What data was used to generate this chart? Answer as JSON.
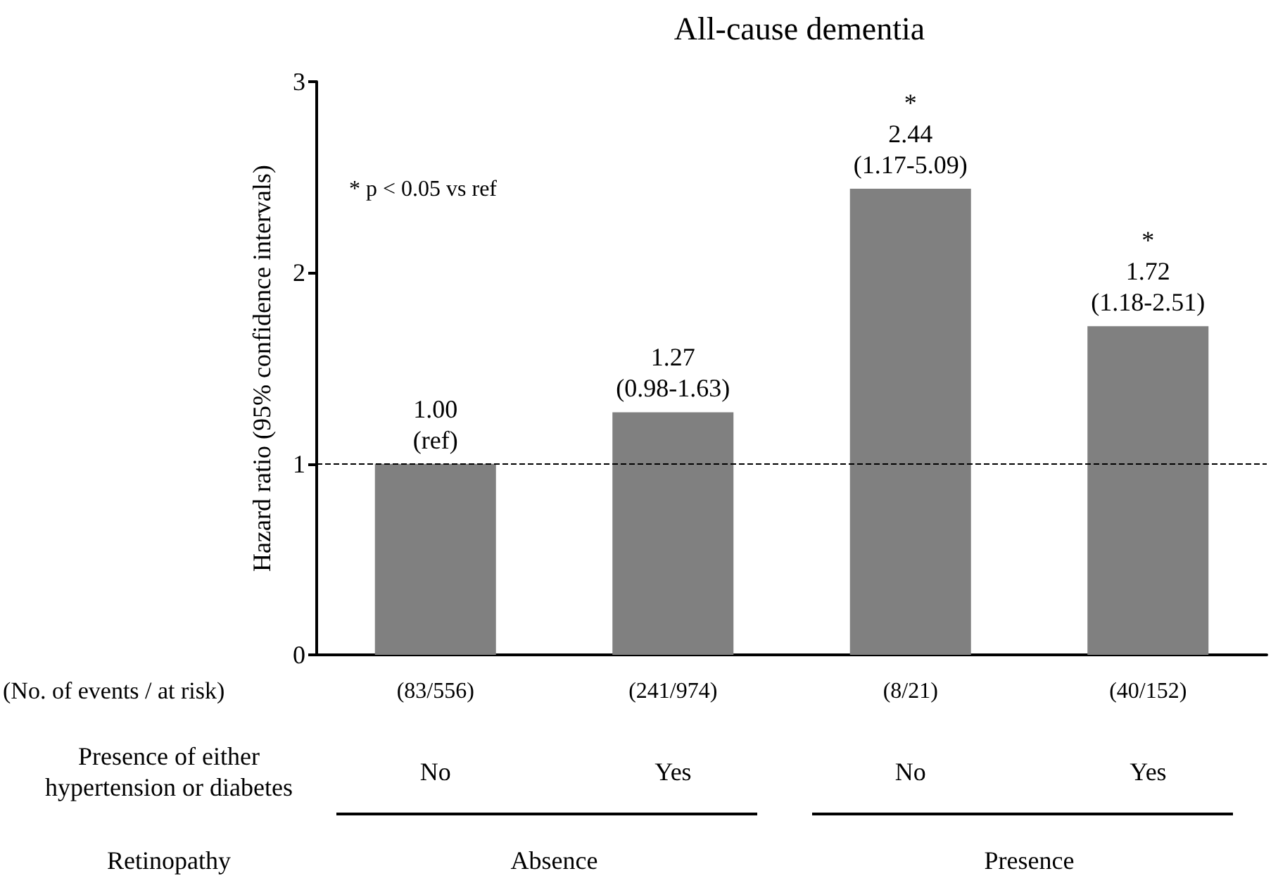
{
  "chart_data": {
    "type": "bar",
    "title": "All-cause dementia",
    "ylabel": "Hazard ratio (95% confidence intervals)",
    "categories": [
      "(83/556)",
      "(241/974)",
      "(8/21)",
      "(40/152)"
    ],
    "values": [
      1.0,
      1.27,
      2.44,
      1.72
    ],
    "color": "#808080",
    "value_labels": [
      "1.00\n(ref)",
      "1.27\n(0.98-1.63)",
      "*\n2.44\n(1.17-5.09)",
      "*\n1.72\n(1.18-2.51)"
    ],
    "ylim": [
      0,
      3
    ],
    "yticks": [
      0,
      1,
      2,
      3
    ],
    "grid": false,
    "ref_lines": [
      {
        "axis": "y",
        "value": 1,
        "label": null,
        "color": "#000000",
        "line_style": "dashed"
      }
    ],
    "annotations": [
      "* p < 0.05 vs ref",
      "(No. of events / at risk)",
      "Presence of either\nhypertension or diabetes",
      "No",
      "Yes",
      "No",
      "Yes",
      "Retinopathy",
      "Absence",
      "Presence"
    ]
  }
}
